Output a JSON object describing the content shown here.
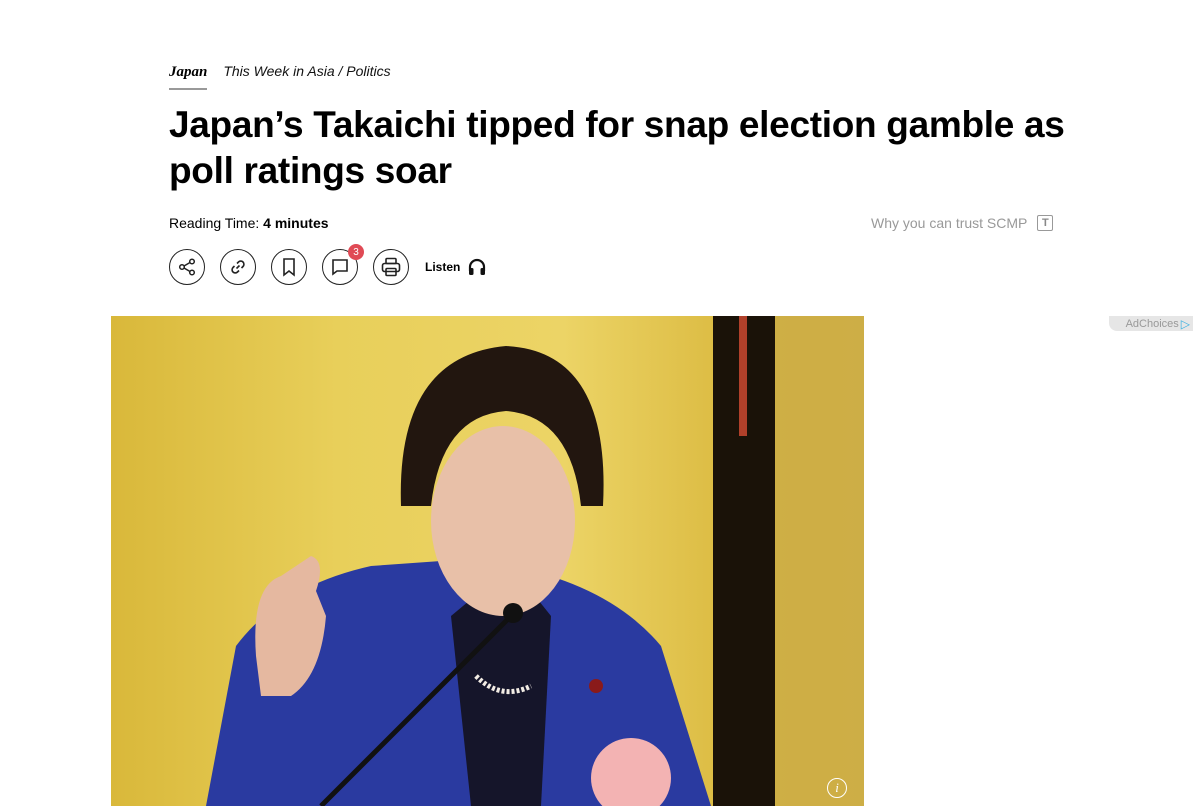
{
  "breadcrumb": {
    "section": "Japan",
    "subsection": "This Week in Asia / Politics"
  },
  "article": {
    "title": "Japan’s Takaichi tipped for snap election gamble as poll ratings soar",
    "reading_label": "Reading Time:",
    "reading_value": "4 minutes"
  },
  "trust": {
    "label": "Why you can trust SCMP",
    "icon_letter": "T"
  },
  "actions": {
    "share": "share-icon",
    "link": "link-icon",
    "bookmark": "bookmark-icon",
    "comments": "comment-icon",
    "comment_count": "3",
    "print": "print-icon",
    "listen_label": "Listen",
    "listen_icon": "headphones-icon"
  },
  "ad": {
    "label": "AdChoices"
  },
  "photo": {
    "info_label": "i"
  },
  "colors": {
    "badge": "#e04a55",
    "accent": "#000000"
  }
}
